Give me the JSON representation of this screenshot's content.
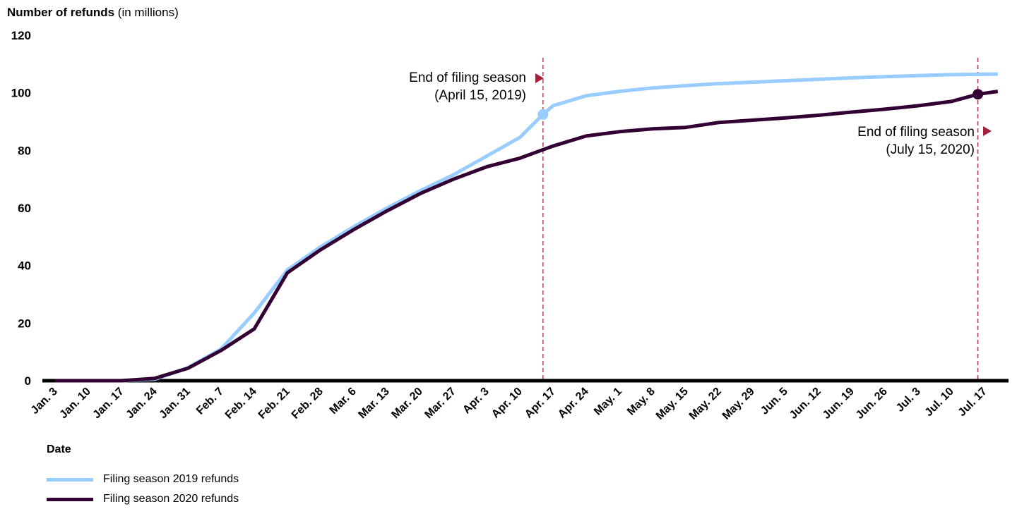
{
  "chart_data": {
    "type": "line",
    "ylabel_bold": "Number of refunds",
    "ylabel_unit": "(in millions)",
    "xlabel": "Date",
    "ylim": [
      0,
      120
    ],
    "yticks": [
      0,
      20,
      40,
      60,
      80,
      100,
      120
    ],
    "categories": [
      "Jan. 3",
      "Jan. 10",
      "Jan. 17",
      "Jan. 24",
      "Jan. 31",
      "Feb. 7",
      "Feb. 14",
      "Feb. 21",
      "Feb. 28",
      "Mar. 6",
      "Mar. 13",
      "Mar. 20",
      "Mar. 27",
      "Apr. 3",
      "Apr. 10",
      "Apr. 17",
      "Apr. 24",
      "May. 1",
      "May. 8",
      "May. 15",
      "May. 22",
      "May. 29",
      "Jun. 5",
      "Jun. 12",
      "Jun. 19",
      "Jun. 26",
      "Jul. 3",
      "Jul. 10",
      "Jul. 17"
    ],
    "series": [
      {
        "name": "Filing season 2019 refunds",
        "color": "#99ccff",
        "points": [
          [
            0,
            0
          ],
          [
            1,
            0
          ],
          [
            2,
            0
          ],
          [
            3,
            0.5
          ],
          [
            4,
            4.5
          ],
          [
            5,
            11
          ],
          [
            6,
            23.5
          ],
          [
            7,
            38.5
          ],
          [
            8,
            46.5
          ],
          [
            9,
            53.5
          ],
          [
            10,
            60
          ],
          [
            11,
            66
          ],
          [
            12,
            71.5
          ],
          [
            13,
            78
          ],
          [
            14,
            84.5
          ],
          [
            14.7,
            92.5
          ],
          [
            15,
            95.5
          ],
          [
            16,
            99
          ],
          [
            17,
            100.5
          ],
          [
            18,
            101.7
          ],
          [
            19,
            102.5
          ],
          [
            20,
            103.2
          ],
          [
            21,
            103.7
          ],
          [
            22,
            104.2
          ],
          [
            23,
            104.7
          ],
          [
            24,
            105.2
          ],
          [
            25,
            105.6
          ],
          [
            26,
            106
          ],
          [
            27,
            106.3
          ],
          [
            28.4,
            106.5
          ]
        ]
      },
      {
        "name": "Filing season 2020 refunds",
        "color": "#330033",
        "points": [
          [
            0,
            0
          ],
          [
            1,
            0
          ],
          [
            2,
            0
          ],
          [
            3,
            0.8
          ],
          [
            4,
            4.3
          ],
          [
            5,
            10.5
          ],
          [
            6,
            18
          ],
          [
            7,
            37.5
          ],
          [
            8,
            45.5
          ],
          [
            9,
            52.5
          ],
          [
            10,
            59
          ],
          [
            11,
            65
          ],
          [
            12,
            70
          ],
          [
            13,
            74.3
          ],
          [
            14,
            77.3
          ],
          [
            15,
            81.5
          ],
          [
            16,
            85
          ],
          [
            17,
            86.5
          ],
          [
            18,
            87.5
          ],
          [
            19,
            88
          ],
          [
            20,
            89.7
          ],
          [
            21,
            90.5
          ],
          [
            22,
            91.3
          ],
          [
            23,
            92.2
          ],
          [
            24,
            93.3
          ],
          [
            25,
            94.3
          ],
          [
            26,
            95.5
          ],
          [
            27,
            97
          ],
          [
            27.8,
            99.5
          ],
          [
            28.4,
            100.5
          ]
        ]
      }
    ],
    "annotations": [
      {
        "line1": "End of filing season",
        "line2": "(April 15, 2019)",
        "x": 14.7,
        "marker_y": 92.5,
        "marker_color": "#99ccff"
      },
      {
        "line1": "End of filing season",
        "line2": "(July 15, 2020)",
        "x": 27.8,
        "marker_y": 99.5,
        "marker_color": "#330033"
      }
    ],
    "reference_line_color": "#a3203a",
    "arrow_color": "#a3203a"
  }
}
